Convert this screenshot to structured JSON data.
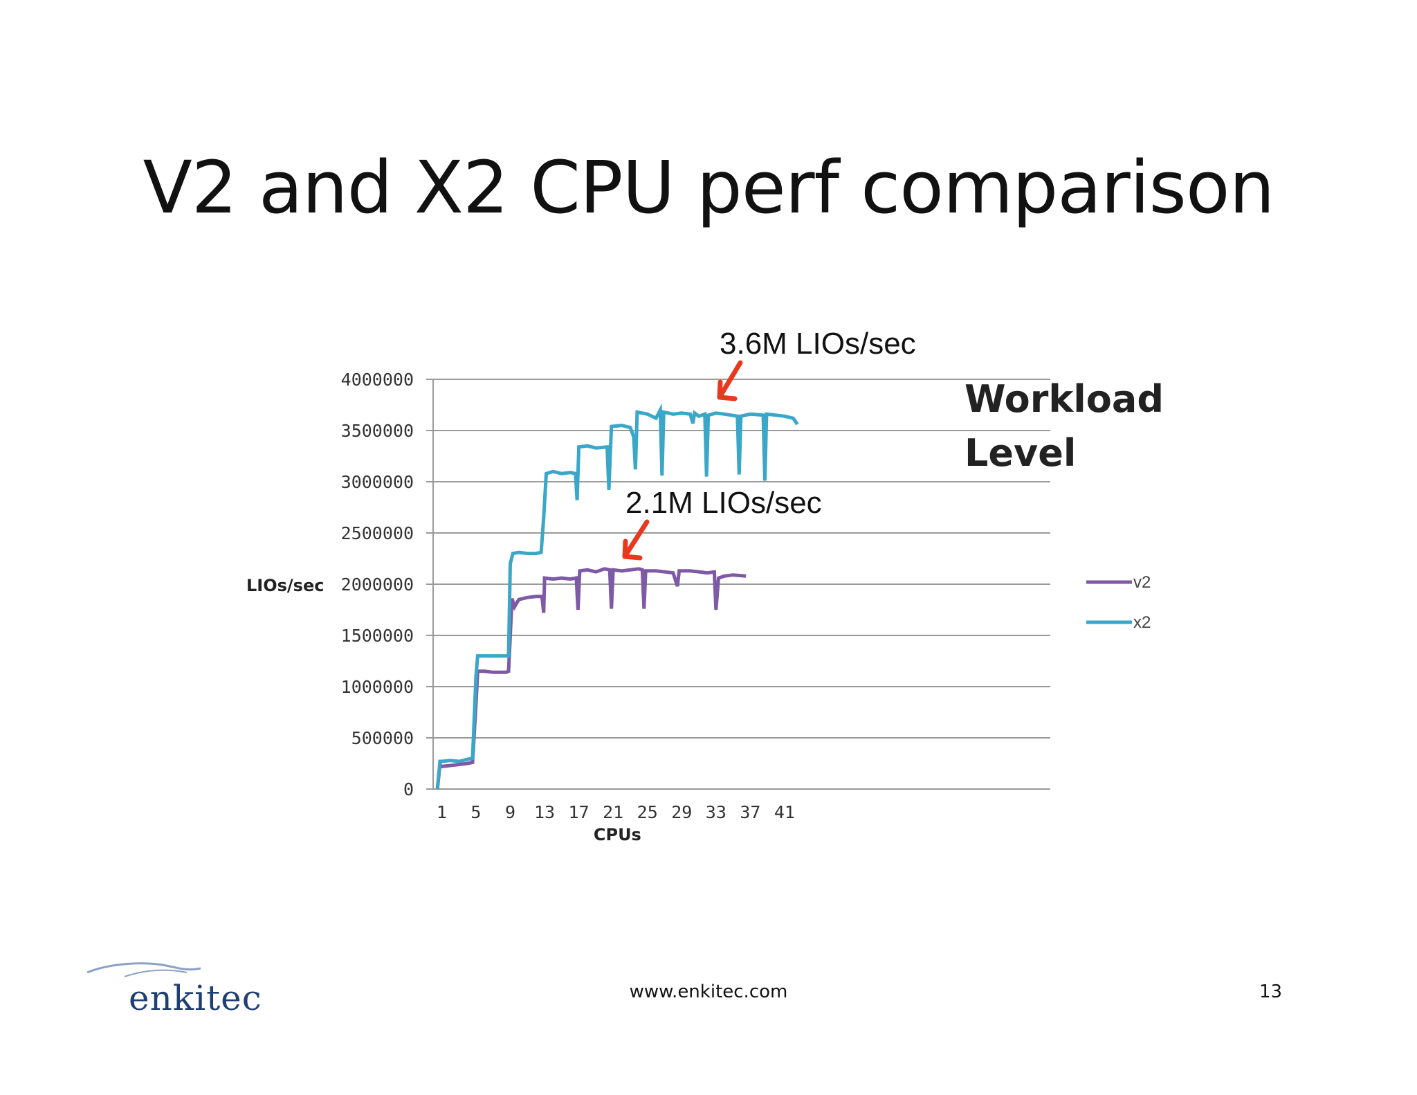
{
  "slide": {
    "title": "V2 and X2 CPU perf comparison",
    "footer_url": "www.enkitec.com",
    "page_number": "13",
    "logo_text": "enkitec"
  },
  "annotations": {
    "x2_peak": "3.6M LIOs/sec",
    "v2_peak": "2.1M LIOs/sec",
    "workload_line1": "Workload",
    "workload_line2": "Level",
    "arrow_color": "#e8391f"
  },
  "chart_data": {
    "type": "line",
    "title": "",
    "xlabel": "CPUs",
    "ylabel": "LIOs/sec",
    "ylim": [
      0,
      4000000
    ],
    "yticks": [
      0,
      500000,
      1000000,
      1500000,
      2000000,
      2500000,
      3000000,
      3500000,
      4000000
    ],
    "xticks": [
      1,
      5,
      9,
      13,
      17,
      21,
      25,
      29,
      33,
      37,
      41
    ],
    "xlim": [
      0,
      72
    ],
    "grid": "horizontal",
    "legend_position": "right",
    "series": [
      {
        "name": "v2",
        "color": "#7e5aa6",
        "values": [
          [
            0.5,
            0
          ],
          [
            0.8,
            240000
          ],
          [
            1,
            220000
          ],
          [
            2,
            230000
          ],
          [
            3,
            240000
          ],
          [
            4,
            250000
          ],
          [
            4.6,
            260000
          ],
          [
            5,
            830000
          ],
          [
            5.2,
            1150000
          ],
          [
            6,
            1150000
          ],
          [
            7,
            1140000
          ],
          [
            8.5,
            1140000
          ],
          [
            8.8,
            1150000
          ],
          [
            9,
            1500000
          ],
          [
            9.2,
            1860000
          ],
          [
            9.5,
            1780000
          ],
          [
            10,
            1850000
          ],
          [
            11,
            1870000
          ],
          [
            12,
            1880000
          ],
          [
            12.7,
            1880000
          ],
          [
            12.9,
            1720000
          ],
          [
            13,
            2060000
          ],
          [
            14,
            2050000
          ],
          [
            15,
            2060000
          ],
          [
            16,
            2050000
          ],
          [
            16.7,
            2060000
          ],
          [
            16.9,
            1750000
          ],
          [
            17.1,
            2130000
          ],
          [
            18,
            2140000
          ],
          [
            19,
            2120000
          ],
          [
            20,
            2150000
          ],
          [
            20.6,
            2140000
          ],
          [
            20.8,
            1760000
          ],
          [
            21,
            2140000
          ],
          [
            22,
            2130000
          ],
          [
            23,
            2140000
          ],
          [
            24,
            2150000
          ],
          [
            24.4,
            2140000
          ],
          [
            24.6,
            1760000
          ],
          [
            24.8,
            2130000
          ],
          [
            26,
            2130000
          ],
          [
            27,
            2120000
          ],
          [
            28,
            2110000
          ],
          [
            28.5,
            1980000
          ],
          [
            28.7,
            2130000
          ],
          [
            30,
            2130000
          ],
          [
            31,
            2120000
          ],
          [
            32,
            2110000
          ],
          [
            32.8,
            2120000
          ],
          [
            33,
            1750000
          ],
          [
            33.3,
            2060000
          ],
          [
            34,
            2080000
          ],
          [
            35,
            2090000
          ],
          [
            36.5,
            2080000
          ]
        ]
      },
      {
        "name": "x2",
        "color": "#3aa7c9",
        "values": [
          [
            0.5,
            0
          ],
          [
            0.8,
            270000
          ],
          [
            1,
            270000
          ],
          [
            2,
            280000
          ],
          [
            3,
            270000
          ],
          [
            4,
            290000
          ],
          [
            4.6,
            300000
          ],
          [
            5,
            1100000
          ],
          [
            5.2,
            1300000
          ],
          [
            6,
            1300000
          ],
          [
            7,
            1300000
          ],
          [
            8.5,
            1300000
          ],
          [
            8.8,
            1300000
          ],
          [
            9,
            2200000
          ],
          [
            9.3,
            2300000
          ],
          [
            10,
            2310000
          ],
          [
            11,
            2300000
          ],
          [
            12,
            2300000
          ],
          [
            12.6,
            2310000
          ],
          [
            12.9,
            2650000
          ],
          [
            13.2,
            3080000
          ],
          [
            14,
            3100000
          ],
          [
            15,
            3080000
          ],
          [
            16,
            3090000
          ],
          [
            16.6,
            3080000
          ],
          [
            16.8,
            2820000
          ],
          [
            17,
            3340000
          ],
          [
            18,
            3350000
          ],
          [
            19,
            3330000
          ],
          [
            20.3,
            3340000
          ],
          [
            20.5,
            2920000
          ],
          [
            20.8,
            3540000
          ],
          [
            22,
            3550000
          ],
          [
            23,
            3530000
          ],
          [
            23.4,
            3440000
          ],
          [
            23.6,
            3120000
          ],
          [
            23.8,
            3680000
          ],
          [
            25,
            3660000
          ],
          [
            26,
            3620000
          ],
          [
            26.5,
            3700000
          ],
          [
            26.7,
            3060000
          ],
          [
            26.9,
            3680000
          ],
          [
            28,
            3660000
          ],
          [
            29,
            3670000
          ],
          [
            30,
            3660000
          ],
          [
            30.3,
            3570000
          ],
          [
            30.5,
            3670000
          ],
          [
            31,
            3640000
          ],
          [
            31.7,
            3660000
          ],
          [
            31.9,
            3050000
          ],
          [
            32.1,
            3650000
          ],
          [
            33,
            3670000
          ],
          [
            34,
            3660000
          ],
          [
            35.5,
            3640000
          ],
          [
            35.7,
            3070000
          ],
          [
            35.9,
            3640000
          ],
          [
            37,
            3660000
          ],
          [
            38.5,
            3650000
          ],
          [
            38.7,
            3010000
          ],
          [
            38.9,
            3660000
          ],
          [
            40,
            3650000
          ],
          [
            41,
            3640000
          ],
          [
            42,
            3620000
          ],
          [
            42.5,
            3560000
          ]
        ]
      }
    ]
  }
}
